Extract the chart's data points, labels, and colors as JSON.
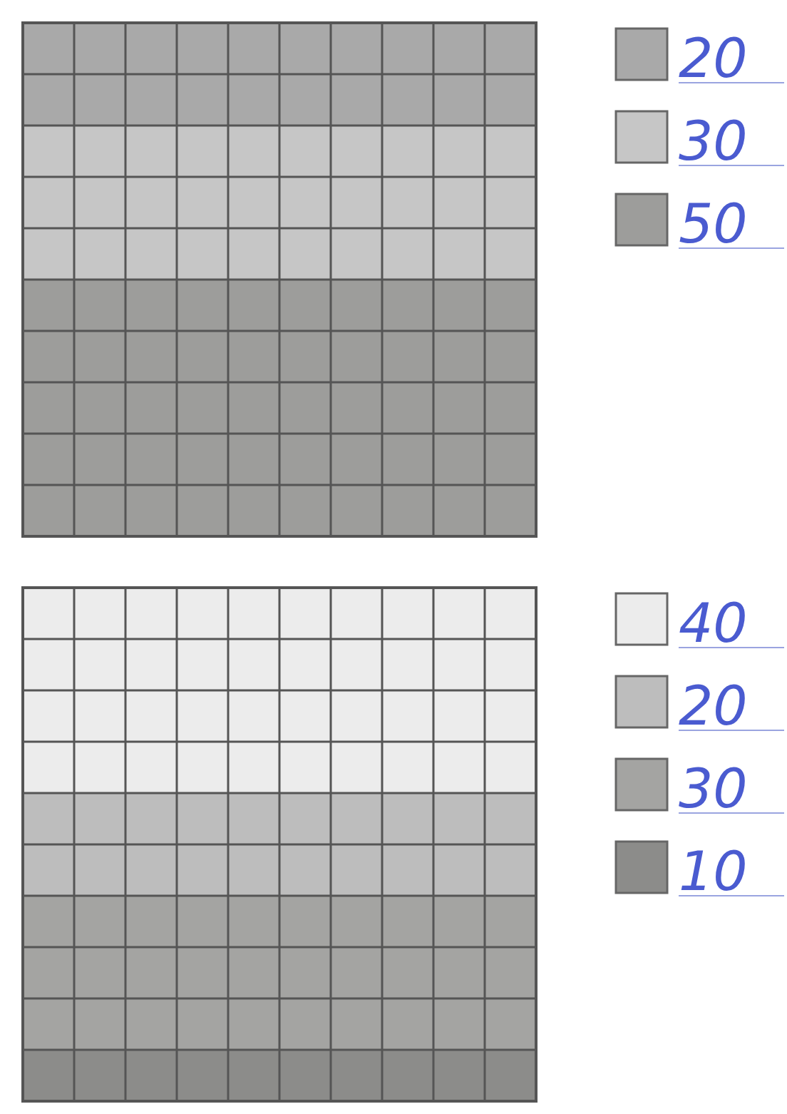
{
  "chart_data": [
    {
      "type": "other",
      "values": [
        20,
        30,
        50
      ],
      "colors": [
        "#a9a9a9",
        "#c6c6c6",
        "#9d9d9b"
      ],
      "data_labels": true
    },
    {
      "type": "other",
      "values": [
        40,
        20,
        30,
        10
      ],
      "colors": [
        "#ececec",
        "#bdbdbd",
        "#a4a4a2",
        "#8c8c8a"
      ],
      "data_labels": true
    }
  ]
}
